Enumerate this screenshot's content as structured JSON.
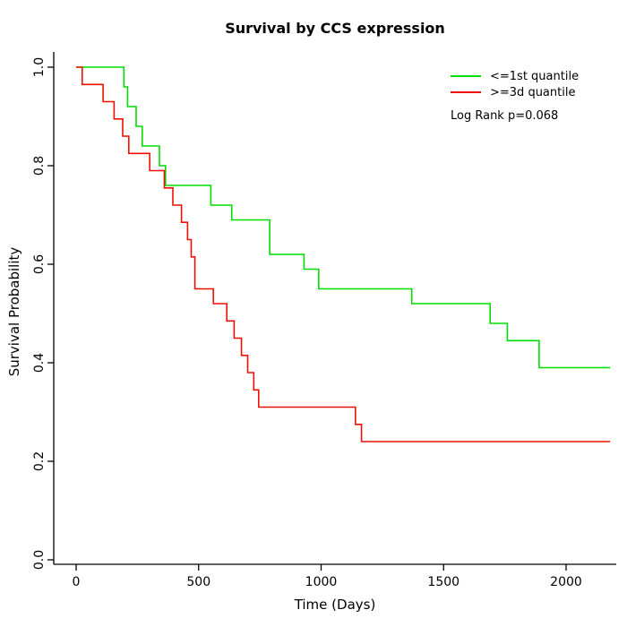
{
  "chart_data": {
    "type": "line",
    "subtype": "step-survival",
    "title": "Survival by CCS expression",
    "xlabel": "Time (Days)",
    "ylabel": "Survival Probability",
    "xlim": [
      0,
      2200
    ],
    "ylim": [
      0.0,
      1.0
    ],
    "x_ticks": [
      0,
      500,
      1000,
      1500,
      2000
    ],
    "y_ticks": [
      "0.0",
      "0.2",
      "0.4",
      "0.6",
      "0.8",
      "1.0"
    ],
    "grid": false,
    "legend_position": "top-right",
    "annotation": "Log Rank p=0.068",
    "series": [
      {
        "name": "<=1st quantile",
        "color": "#00DD00",
        "points": [
          [
            0,
            1.0
          ],
          [
            195,
            0.96
          ],
          [
            210,
            0.92
          ],
          [
            245,
            0.88
          ],
          [
            270,
            0.84
          ],
          [
            340,
            0.8
          ],
          [
            365,
            0.76
          ],
          [
            550,
            0.72
          ],
          [
            635,
            0.69
          ],
          [
            790,
            0.62
          ],
          [
            930,
            0.59
          ],
          [
            990,
            0.55
          ],
          [
            1370,
            0.52
          ],
          [
            1690,
            0.48
          ],
          [
            1760,
            0.445
          ],
          [
            1890,
            0.39
          ],
          [
            2180,
            0.39
          ]
        ]
      },
      {
        "name": ">=3d quantile",
        "color": "#EE1100",
        "points": [
          [
            0,
            1.0
          ],
          [
            25,
            0.965
          ],
          [
            110,
            0.93
          ],
          [
            155,
            0.895
          ],
          [
            190,
            0.86
          ],
          [
            215,
            0.825
          ],
          [
            300,
            0.79
          ],
          [
            360,
            0.755
          ],
          [
            395,
            0.72
          ],
          [
            430,
            0.685
          ],
          [
            455,
            0.65
          ],
          [
            470,
            0.615
          ],
          [
            485,
            0.55
          ],
          [
            560,
            0.52
          ],
          [
            615,
            0.485
          ],
          [
            645,
            0.45
          ],
          [
            675,
            0.415
          ],
          [
            700,
            0.38
          ],
          [
            725,
            0.345
          ],
          [
            745,
            0.31
          ],
          [
            1140,
            0.275
          ],
          [
            1165,
            0.24
          ],
          [
            2180,
            0.24
          ]
        ]
      }
    ]
  }
}
